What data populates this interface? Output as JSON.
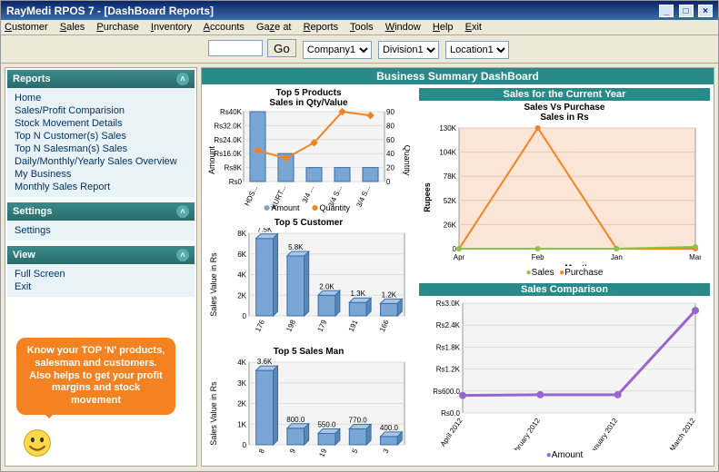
{
  "window": {
    "title": "RayMedi RPOS 7 - [DashBoard Reports]"
  },
  "menu": [
    "Customer",
    "Sales",
    "Purchase",
    "Inventory",
    "Accounts",
    "Gaze at",
    "Reports",
    "Tools",
    "Window",
    "Help",
    "Exit"
  ],
  "toolbar": {
    "go": "Go",
    "company": {
      "selected": "Company1"
    },
    "division": {
      "selected": "Division1"
    },
    "location": {
      "selected": "Location1"
    }
  },
  "sidebar": {
    "reports": {
      "title": "Reports",
      "items": [
        "Home",
        "Sales/Profit Comparision",
        "Stock Movement Details",
        "Top N Customer(s) Sales",
        "Top N Salesman(s) Sales",
        "Daily/Monthly/Yearly Sales Overview",
        "My Business",
        "Monthly Sales Report"
      ]
    },
    "settings": {
      "title": "Settings",
      "items": [
        "Settings"
      ]
    },
    "view": {
      "title": "View",
      "items": [
        "Full Screen",
        "Exit"
      ]
    }
  },
  "dashboard_title": "Business Summary DashBoard",
  "callout": "Know your TOP 'N' products, salesman and customers. Also helps to get your profit margins and stock movement",
  "top5products": {
    "title1": "Top 5 Products",
    "title2": "Sales in Qty/Value",
    "ylabel": "Amount",
    "y2label": "Quantity",
    "categories": [
      "HDS...",
      "KURT...",
      "3/4 ...",
      "3/4 S...",
      "3/4 S..."
    ],
    "amount_values": [
      40000,
      16000,
      8000,
      8000,
      8000
    ],
    "qty_values": [
      40,
      30,
      50,
      90,
      85
    ],
    "yticks": [
      "Rs0",
      "Rs8K",
      "Rs16.0K",
      "Rs24.0K",
      "Rs32.0K",
      "Rs40K"
    ],
    "y2ticks": [
      "0",
      "20",
      "40",
      "60",
      "80",
      "90"
    ],
    "bar_color": "#7aa6d6",
    "line_color": "#f58220",
    "bg": "#f4f4f4",
    "legend": [
      "Amount",
      "Quantity"
    ]
  },
  "top5customer": {
    "title": "Top 5 Customer",
    "ylabel": "Sales Value in Rs",
    "categories": [
      "176",
      "198",
      "179",
      "191",
      "166"
    ],
    "values": [
      7500,
      5800,
      2000,
      1300,
      1200
    ],
    "labels": [
      "7.5K",
      "5.8K",
      "2.0K",
      "1.3K",
      "1.2K"
    ],
    "yticks": [
      "0",
      "2K",
      "4K",
      "6K",
      "8K"
    ],
    "bar_color": "#7aa6d6",
    "bg": "#f4f4f4"
  },
  "top5salesman": {
    "title": "Top 5 Sales Man",
    "ylabel": "Sales Value in Rs",
    "categories": [
      "8",
      "9",
      "19",
      "5",
      "3"
    ],
    "values": [
      3600,
      800,
      550,
      770,
      400
    ],
    "labels": [
      "3.6K",
      "800.0",
      "550.0",
      "770.0",
      "400.0"
    ],
    "yticks": [
      "0",
      "1K",
      "2K",
      "3K",
      "4K"
    ],
    "bar_color": "#7aa6d6",
    "bg": "#f4f4f4"
  },
  "salesyear": {
    "panel_title": "Sales for the Current Year",
    "title1": "Sales Vs Purchase",
    "title2": "Sales in Rs",
    "xlabel": "Month",
    "ylabel": "Rupees",
    "xcats": [
      "Apr",
      "Feb",
      "Jan",
      "Mar"
    ],
    "yticks": [
      "0",
      "26K",
      "52K",
      "78K",
      "104K",
      "130K"
    ],
    "sales": [
      0,
      0,
      0,
      2000
    ],
    "purchase": [
      0,
      130000,
      0,
      0
    ],
    "sales_color": "#8bc34a",
    "purchase_color": "#f58220",
    "bg": "#fbe5d6",
    "legend": [
      "Sales",
      "Purchase"
    ]
  },
  "salescomp": {
    "panel_title": "Sales Comparison",
    "xcats": [
      "April 2012",
      "February 2012",
      "January 2012",
      "March 2012"
    ],
    "yticks": [
      "Rs0.0",
      "Rs600.0",
      "Rs1.2K",
      "Rs1.8K",
      "Rs2.4K",
      "Rs3.0K"
    ],
    "values": [
      480,
      500,
      500,
      2800
    ],
    "line_color": "#9966cc",
    "bg": "#f4f4f4",
    "legend": [
      "Amount"
    ]
  }
}
